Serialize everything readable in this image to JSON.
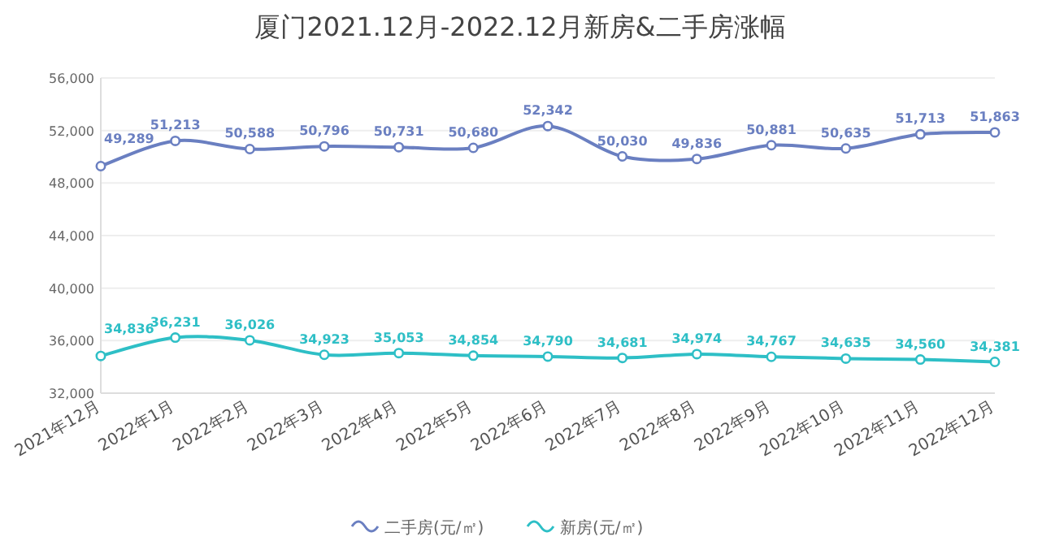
{
  "chart_data": {
    "type": "line",
    "title": "厦门2021.12月-2022.12月新房&二手房涨幅",
    "categories": [
      "2021年12月",
      "2022年1月",
      "2022年2月",
      "2022年3月",
      "2022年4月",
      "2022年5月",
      "2022年6月",
      "2022年7月",
      "2022年8月",
      "2022年9月",
      "2022年10月",
      "2022年11月",
      "2022年12月"
    ],
    "series": [
      {
        "name": "二手房(元/㎡)",
        "color": "#6a7fc1",
        "values": [
          49289,
          51213,
          50588,
          50796,
          50731,
          50680,
          52342,
          50030,
          49836,
          50881,
          50635,
          51713,
          51863
        ],
        "value_labels": [
          "49,289",
          "51,213",
          "50,588",
          "50,796",
          "50,731",
          "50,680",
          "52,342",
          "50,030",
          "49,836",
          "50,881",
          "50,635",
          "51,713",
          "51,863"
        ]
      },
      {
        "name": "新房(元/㎡)",
        "color": "#2ebfc6",
        "values": [
          34836,
          36231,
          36026,
          34923,
          35053,
          34854,
          34790,
          34681,
          34974,
          34767,
          34635,
          34560,
          34381
        ],
        "value_labels": [
          "34,836",
          "36,231",
          "36,026",
          "34,923",
          "35,053",
          "34,854",
          "34,790",
          "34,681",
          "34,974",
          "34,767",
          "34,635",
          "34,560",
          "34,381"
        ]
      }
    ],
    "ylim": [
      32000,
      56000
    ],
    "yticks": [
      {
        "value": 32000,
        "label": "32,000"
      },
      {
        "value": 36000,
        "label": "36,000"
      },
      {
        "value": 40000,
        "label": "40,000"
      },
      {
        "value": 44000,
        "label": "44,000"
      },
      {
        "value": 48000,
        "label": "48,000"
      },
      {
        "value": 52000,
        "label": "52,000"
      },
      {
        "value": 56000,
        "label": "56,000"
      }
    ],
    "grid": "y",
    "legend": "bottom",
    "marker": "circle",
    "line_style": "solid"
  }
}
